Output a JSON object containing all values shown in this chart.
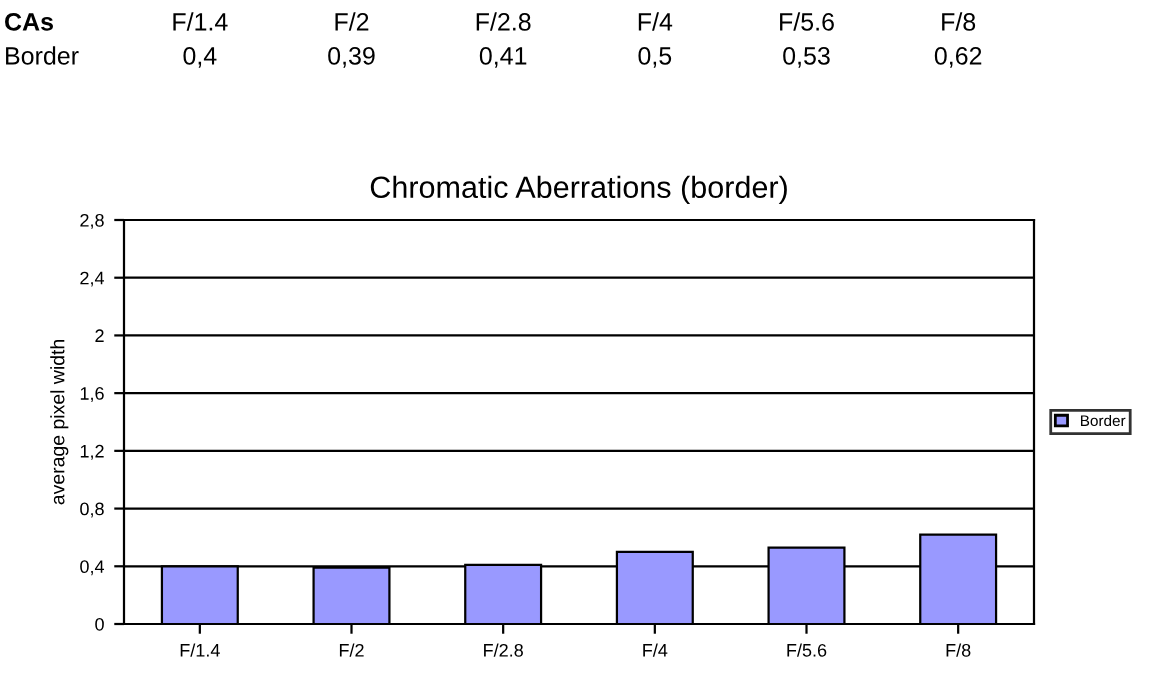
{
  "chart_data": {
    "type": "bar",
    "title": "Chromatic Aberrations (border)",
    "ylabel": "average pixel width",
    "annotations": [
      "CAs"
    ],
    "categories": [
      "F/1.4",
      "F/2",
      "F/2.8",
      "F/4",
      "F/5.6",
      "F/8"
    ],
    "series": [
      {
        "name": "Border",
        "color": "#9999ff",
        "values": [
          0.4,
          0.39,
          0.41,
          0.5,
          0.53,
          0.62
        ],
        "value_labels": [
          "0,4",
          "0,39",
          "0,41",
          "0,5",
          "0,53",
          "0,62"
        ]
      }
    ],
    "ylim": [
      0,
      2.8
    ],
    "yticks": [
      0,
      {
        "value": 0.4,
        "label": "0,4"
      },
      {
        "value": 0.8,
        "label": "0,8"
      },
      {
        "value": 1.2,
        "label": "1,2"
      },
      {
        "value": 1.6,
        "label": "1,6"
      },
      {
        "value": 2.0,
        "label": "2"
      },
      {
        "value": 2.4,
        "label": "2,4"
      },
      {
        "value": 2.8,
        "label": "2,8"
      }
    ],
    "grid": "y",
    "legend": "right"
  }
}
